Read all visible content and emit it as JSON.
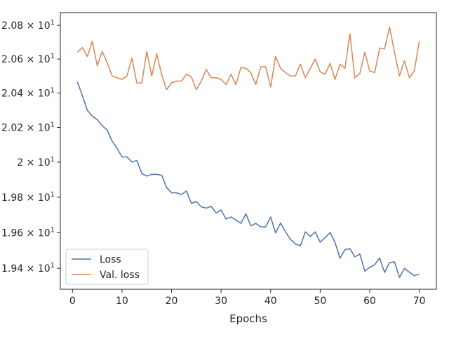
{
  "chart_data": {
    "type": "line",
    "title": "",
    "xlabel": "Epochs",
    "ylabel": "",
    "xlim": [
      -2.45,
      73.45
    ],
    "ylim": [
      19.284,
      20.876
    ],
    "y_scale": "log",
    "grid": false,
    "legend_position": "lower-left",
    "x_ticks": [
      0,
      10,
      20,
      30,
      40,
      50,
      60,
      70
    ],
    "x_tick_labels": [
      "0",
      "10",
      "20",
      "30",
      "40",
      "50",
      "60",
      "70"
    ],
    "y_ticks": [
      {
        "value": 19.4,
        "mantissa": "1.94",
        "exp": "1"
      },
      {
        "value": 19.6,
        "mantissa": "1.96",
        "exp": "1"
      },
      {
        "value": 19.8,
        "mantissa": "1.98",
        "exp": "1"
      },
      {
        "value": 20.0,
        "mantissa": "2",
        "exp": "1"
      },
      {
        "value": 20.2,
        "mantissa": "2.02",
        "exp": "1"
      },
      {
        "value": 20.4,
        "mantissa": "2.04",
        "exp": "1"
      },
      {
        "value": 20.6,
        "mantissa": "2.06",
        "exp": "1"
      },
      {
        "value": 20.8,
        "mantissa": "2.08",
        "exp": "1"
      }
    ],
    "x": [
      1,
      2,
      3,
      4,
      5,
      6,
      7,
      8,
      9,
      10,
      11,
      12,
      13,
      14,
      15,
      16,
      17,
      18,
      19,
      20,
      21,
      22,
      23,
      24,
      25,
      26,
      27,
      28,
      29,
      30,
      31,
      32,
      33,
      34,
      35,
      36,
      37,
      38,
      39,
      40,
      41,
      42,
      43,
      44,
      45,
      46,
      47,
      48,
      49,
      50,
      51,
      52,
      53,
      54,
      55,
      56,
      57,
      58,
      59,
      60,
      61,
      62,
      63,
      64,
      65,
      66,
      67,
      68,
      69,
      70
    ],
    "series": [
      {
        "name": "Loss",
        "color": "#4c72b0",
        "values": [
          20.465,
          20.385,
          20.3,
          20.265,
          20.245,
          20.21,
          20.185,
          20.12,
          20.08,
          20.03,
          20.03,
          20.0,
          20.01,
          19.935,
          19.92,
          19.93,
          19.93,
          19.925,
          19.855,
          19.825,
          19.825,
          19.815,
          19.835,
          19.765,
          19.775,
          19.745,
          19.738,
          19.748,
          19.71,
          19.728,
          19.676,
          19.688,
          19.67,
          19.652,
          19.706,
          19.638,
          19.652,
          19.632,
          19.632,
          19.688,
          19.598,
          19.654,
          19.604,
          19.562,
          19.536,
          19.526,
          19.604,
          19.578,
          19.604,
          19.546,
          19.572,
          19.6,
          19.544,
          19.456,
          19.504,
          19.51,
          19.464,
          19.48,
          19.384,
          19.406,
          19.42,
          19.458,
          19.377,
          19.432,
          19.436,
          19.35,
          19.4,
          19.378,
          19.36,
          19.368
        ]
      },
      {
        "name": "Val. loss",
        "color": "#dd8452",
        "values": [
          20.64,
          20.668,
          20.615,
          20.705,
          20.56,
          20.645,
          20.58,
          20.5,
          20.49,
          20.48,
          20.5,
          20.605,
          20.458,
          20.46,
          20.645,
          20.5,
          20.63,
          20.51,
          20.42,
          20.46,
          20.47,
          20.47,
          20.51,
          20.495,
          20.42,
          20.47,
          20.538,
          20.49,
          20.49,
          20.48,
          20.45,
          20.51,
          20.45,
          20.55,
          20.545,
          20.52,
          20.45,
          20.555,
          20.555,
          20.435,
          20.615,
          20.545,
          20.52,
          20.5,
          20.5,
          20.57,
          20.49,
          20.545,
          20.6,
          20.525,
          20.51,
          20.575,
          20.48,
          20.57,
          20.545,
          20.75,
          20.49,
          20.515,
          20.64,
          20.53,
          20.52,
          20.665,
          20.66,
          20.79,
          20.64,
          20.5,
          20.59,
          20.49,
          20.53,
          20.705
        ]
      }
    ]
  }
}
